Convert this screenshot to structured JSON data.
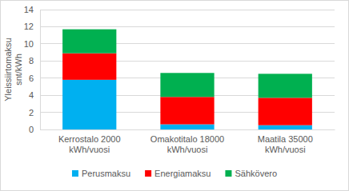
{
  "chart_data": {
    "type": "bar",
    "stacked": true,
    "y_label": "Yleissiirtomaksu snt/kWh",
    "categories": [
      "Kerrostalo 2000 kWh/vuosi",
      "Omakotitalo 18000 kWh/vuosi",
      "Maatila 35000 kWh/vuosi"
    ],
    "series": [
      {
        "name": "Perusmaksu",
        "color": "#00b0f0",
        "values": [
          5.8,
          0.6,
          0.5
        ]
      },
      {
        "name": "Energiamaksu",
        "color": "#ff0000",
        "values": [
          3.1,
          3.2,
          3.2
        ]
      },
      {
        "name": "Sähkövero",
        "color": "#00b050",
        "values": [
          2.8,
          2.8,
          2.8
        ]
      }
    ],
    "ylim": [
      0,
      14
    ],
    "yticks": [
      0,
      2,
      4,
      6,
      8,
      10,
      12,
      14
    ],
    "grid": true,
    "legend": "bottom"
  }
}
